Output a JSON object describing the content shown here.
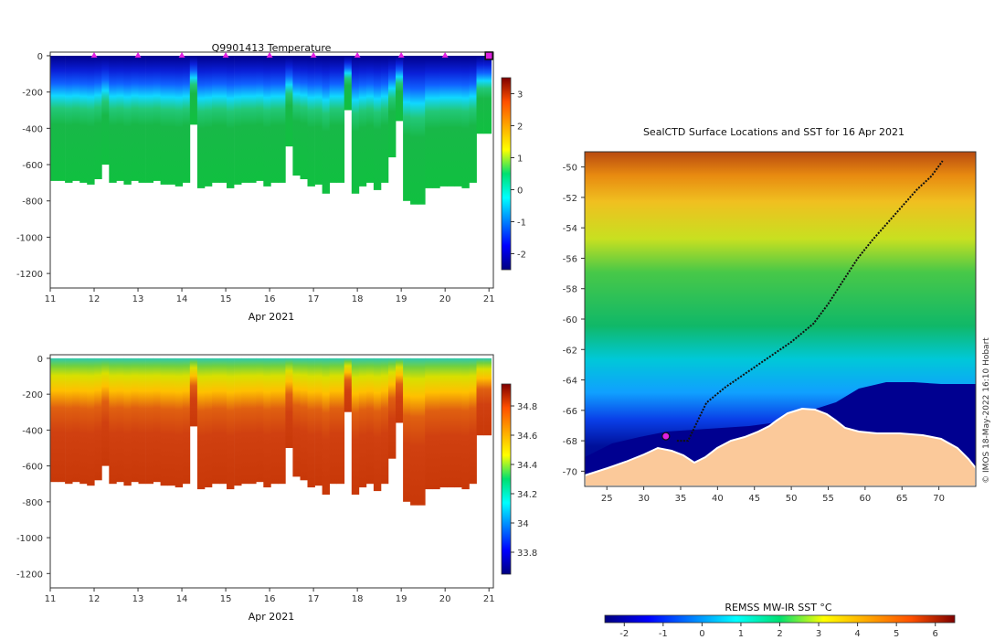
{
  "colors": {
    "land": "#fbc99a",
    "track": "#111111",
    "marker": "#e020e0",
    "frame": "#333333"
  },
  "chart_data": [
    {
      "type": "heatmap",
      "title": "Q9901413  Temperature",
      "xlabel": "Apr 2021",
      "ylabel": "",
      "xlim": [
        11,
        21.1
      ],
      "ylim": [
        -1280,
        20
      ],
      "x_ticks": [
        "11",
        "12",
        "13",
        "14",
        "15",
        "16",
        "17",
        "18",
        "19",
        "20",
        "21"
      ],
      "y_ticks": [
        "0",
        "-200",
        "-400",
        "-600",
        "-800",
        "-1000",
        "-1200"
      ],
      "colorbar": {
        "range": [
          -2.5,
          3.5
        ],
        "ticks": [
          "3",
          "2",
          "1",
          "0",
          "-1",
          "-2"
        ],
        "colormap": "jet"
      },
      "surfacing_markers_day": [
        12,
        13,
        14,
        15,
        16,
        17,
        18,
        19,
        20,
        21
      ],
      "profile_max_depth_m": [
        -690,
        -690,
        -700,
        -690,
        -700,
        -710,
        -680,
        -600,
        -700,
        -690,
        -710,
        -690,
        -700,
        -700,
        -690,
        -710,
        -710,
        -720,
        -700,
        -380,
        -730,
        -720,
        -700,
        -700,
        -730,
        -710,
        -700,
        -700,
        -690,
        -720,
        -700,
        -700,
        -500,
        -660,
        -680,
        -720,
        -710,
        -760,
        -700,
        -700,
        -300,
        -760,
        -720,
        -700,
        -740,
        -700,
        -560,
        -360,
        -800,
        -820,
        -820,
        -730,
        -730,
        -720,
        -720,
        -720,
        -730,
        -700,
        -430,
        -430
      ]
    },
    {
      "type": "heatmap",
      "title": "",
      "xlabel": "Apr 2021",
      "ylabel": "",
      "xlim": [
        11,
        21.1
      ],
      "ylim": [
        -1280,
        20
      ],
      "x_ticks": [
        "11",
        "12",
        "13",
        "14",
        "15",
        "16",
        "17",
        "18",
        "19",
        "20",
        "21"
      ],
      "y_ticks": [
        "0",
        "-200",
        "-400",
        "-600",
        "-800",
        "-1000",
        "-1200"
      ],
      "colorbar": {
        "range": [
          33.65,
          34.95
        ],
        "ticks": [
          "34.8",
          "34.6",
          "34.4",
          "34.2",
          "34",
          "33.8"
        ],
        "colormap": "jet"
      }
    },
    {
      "type": "heatmap",
      "title": "SealCTD Surface Locations and SST for 16 Apr 2021",
      "xlabel": "",
      "ylabel": "",
      "xlim": [
        22,
        75
      ],
      "ylim": [
        -71,
        -49
      ],
      "x_ticks": [
        "25",
        "30",
        "35",
        "40",
        "45",
        "50",
        "55",
        "60",
        "65",
        "70"
      ],
      "y_ticks": [
        "-50",
        "-52",
        "-54",
        "-56",
        "-58",
        "-60",
        "-62",
        "-64",
        "-66",
        "-68",
        "-70"
      ],
      "colorbar": {
        "label": "REMSS MW-IR SST °C",
        "range": [
          -2.5,
          6.5
        ],
        "ticks": [
          "-2",
          "-1",
          "0",
          "1",
          "2",
          "3",
          "4",
          "5",
          "6"
        ],
        "colormap": "jet"
      },
      "track": [
        [
          34.5,
          -68.0
        ],
        [
          36,
          -68.0
        ],
        [
          37,
          -67.0
        ],
        [
          38.5,
          -65.5
        ],
        [
          41,
          -64.5
        ],
        [
          44,
          -63.5
        ],
        [
          47,
          -62.5
        ],
        [
          50,
          -61.5
        ],
        [
          53,
          -60.3
        ],
        [
          55,
          -59.0
        ],
        [
          57,
          -57.5
        ],
        [
          59,
          -56.0
        ],
        [
          61,
          -54.8
        ],
        [
          63,
          -53.7
        ],
        [
          65,
          -52.6
        ],
        [
          67,
          -51.5
        ],
        [
          69,
          -50.6
        ],
        [
          70.5,
          -49.6
        ]
      ],
      "last_position": [
        33.0,
        -67.7
      ],
      "credit": "© IMOS 18-May-2022 16:10 Hobart"
    }
  ]
}
